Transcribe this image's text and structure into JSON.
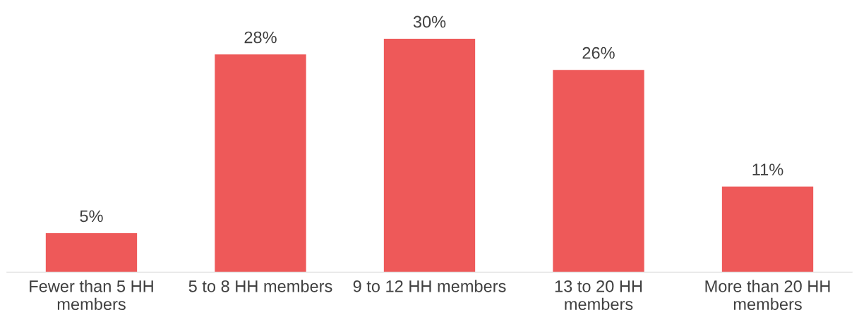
{
  "chart_data": {
    "type": "bar",
    "categories": [
      "Fewer than 5 HH members",
      "5 to 8 HH members",
      "9 to 12 HH members",
      "13 to 20 HH members",
      "More than 20 HH members"
    ],
    "values": [
      5,
      28,
      30,
      26,
      11
    ],
    "value_labels": [
      "5%",
      "28%",
      "30%",
      "26%",
      "11%"
    ],
    "color": "#ee5959",
    "grid": false,
    "legend": false,
    "tick_labels": "x"
  }
}
